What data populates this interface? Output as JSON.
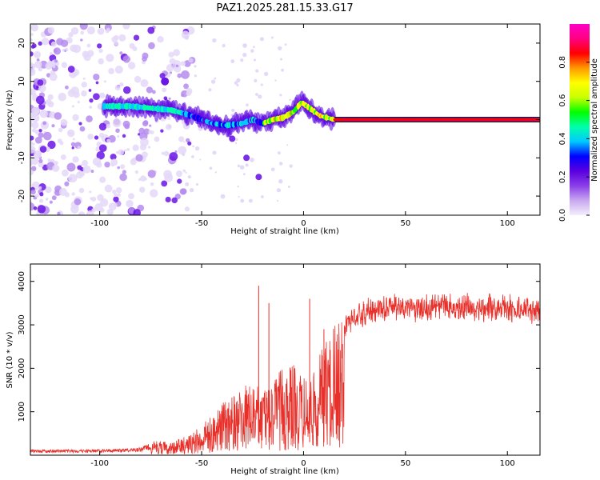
{
  "figure": {
    "title": "PAZ1.2025.281.15.33.G17"
  },
  "chart_data": [
    {
      "type": "heatmap",
      "name": "spectrogram",
      "title": "PAZ1.2025.281.15.33.G17",
      "xlabel": "Height of straight line (km)",
      "ylabel": "Frequency (Hz)",
      "xlim": [
        -134,
        116
      ],
      "ylim": [
        -25,
        25
      ],
      "xticks": [
        -100,
        -50,
        0,
        50,
        100
      ],
      "yticks": [
        -20,
        -10,
        0,
        10,
        20
      ],
      "xtick_labels": [
        "-100",
        "-50",
        "0",
        "50",
        "100"
      ],
      "ytick_labels": [
        "-20",
        "-10",
        "0",
        "10",
        "20"
      ],
      "ridge": {
        "description_free": true,
        "points": [
          [
            -95,
            3.5
          ],
          [
            -85,
            3.5
          ],
          [
            -75,
            3.0
          ],
          [
            -65,
            2.5
          ],
          [
            -58,
            1.5
          ],
          [
            -50,
            0.0
          ],
          [
            -45,
            -1.0
          ],
          [
            -38,
            -1.5
          ],
          [
            -30,
            -1.0
          ],
          [
            -25,
            0.0
          ],
          [
            -20,
            -1.0
          ],
          [
            -15,
            0.0
          ],
          [
            -10,
            0.5
          ],
          [
            -5,
            2.0
          ],
          [
            -1,
            4.5
          ],
          [
            3,
            3.0
          ],
          [
            8,
            1.0
          ],
          [
            15,
            0.0
          ],
          [
            30,
            0.0
          ],
          [
            60,
            0.0
          ],
          [
            116,
            0.0
          ]
        ]
      },
      "branch": [
        [
          -35,
          -5
        ],
        [
          -28,
          -10
        ],
        [
          -22,
          -15
        ]
      ],
      "colorbar": {
        "label": "Normalized spectral amplitude",
        "range": [
          0,
          1
        ],
        "ticks": [
          0.0,
          0.2,
          0.4,
          0.6,
          0.8
        ],
        "tick_labels": [
          "0.0",
          "0.2",
          "0.4",
          "0.6",
          "0.8"
        ],
        "colors": [
          "#f4eefc",
          "#c9a8f0",
          "#8a3ee8",
          "#5a00e0",
          "#0000ff",
          "#00c8ff",
          "#00ffaa",
          "#00ff00",
          "#c8ff00",
          "#ffff00",
          "#ff9900",
          "#ff0000",
          "#ff0080",
          "#ff00c8"
        ]
      }
    },
    {
      "type": "line",
      "name": "snr",
      "xlabel": "Height of straight line (km)",
      "ylabel": "SNR (10 * v/v)",
      "xlim": [
        -134,
        116
      ],
      "ylim": [
        0,
        4400
      ],
      "xticks": [
        -100,
        -50,
        0,
        50,
        100
      ],
      "yticks": [
        1000,
        2000,
        3000,
        4000
      ],
      "xtick_labels": [
        "-100",
        "-50",
        "0",
        "50",
        "100"
      ],
      "ytick_labels": [
        "1000",
        "2000",
        "3000",
        "4000"
      ],
      "line_color": "#e8302a",
      "envelope": [
        [
          -134,
          130
        ],
        [
          -110,
          130
        ],
        [
          -90,
          150
        ],
        [
          -80,
          180
        ],
        [
          -72,
          350
        ],
        [
          -65,
          300
        ],
        [
          -55,
          500
        ],
        [
          -48,
          800
        ],
        [
          -40,
          1200
        ],
        [
          -32,
          1500
        ],
        [
          -25,
          1700
        ],
        [
          -20,
          1500
        ],
        [
          -15,
          1800
        ],
        [
          -10,
          2000
        ],
        [
          -5,
          2100
        ],
        [
          0,
          1800
        ],
        [
          5,
          1900
        ],
        [
          10,
          2600
        ],
        [
          15,
          3000
        ],
        [
          20,
          3200
        ],
        [
          25,
          3400
        ],
        [
          30,
          3500
        ],
        [
          40,
          3600
        ],
        [
          60,
          3620
        ],
        [
          80,
          3600
        ],
        [
          100,
          3580
        ],
        [
          116,
          3550
        ]
      ],
      "spikes": [
        [
          -22,
          3900
        ],
        [
          -17,
          3500
        ],
        [
          3,
          3600
        ],
        [
          10,
          2900
        ]
      ]
    }
  ]
}
